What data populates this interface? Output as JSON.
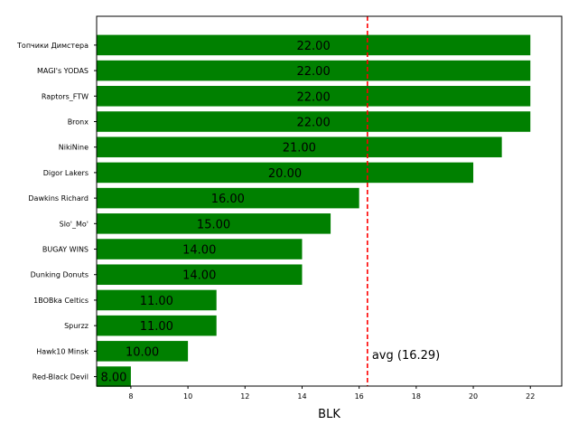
{
  "chart_data": {
    "type": "bar",
    "orientation": "horizontal",
    "xlabel": "BLK",
    "xlim": [
      6.8,
      23.1
    ],
    "xticks": [
      8,
      10,
      12,
      14,
      16,
      18,
      20,
      22
    ],
    "grid": false,
    "bar_color": "#008000",
    "categories": [
      "Топчики Димстера",
      "MAGI's YODAS",
      "Raptors_FTW",
      "Bronx",
      "NikiNine",
      "Digor Lakers",
      "Dawkins Richard",
      "Slo'_Mo'",
      "BUGAY WINS",
      "Dunking Donuts",
      "1BOBka Celtics",
      "Spurzz",
      "Hawk10 Minsk",
      "Red-Black Devil"
    ],
    "values": [
      22,
      22,
      22,
      22,
      21,
      20,
      16,
      15,
      14,
      14,
      11,
      11,
      10,
      8
    ],
    "value_labels": [
      "22.00",
      "22.00",
      "22.00",
      "22.00",
      "21.00",
      "20.00",
      "16.00",
      "15.00",
      "14.00",
      "14.00",
      "11.00",
      "11.00",
      "10.00",
      "8.00"
    ],
    "average": {
      "value": 16.29,
      "label": "avg (16.29)",
      "color": "#ff0000",
      "style": "dashed"
    }
  }
}
